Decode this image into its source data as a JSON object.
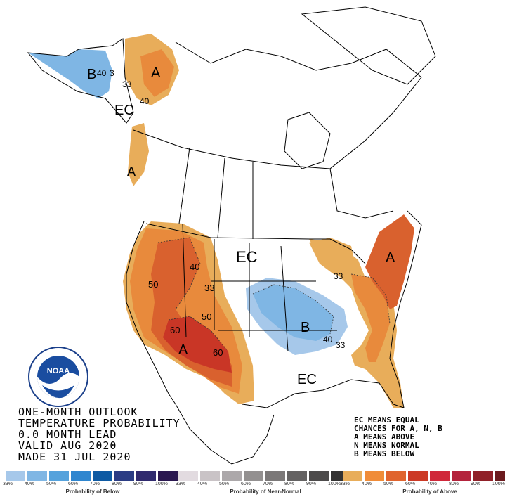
{
  "title_lines": [
    "ONE-MONTH OUTLOOK",
    "TEMPERATURE PROBABILITY",
    "0.0 MONTH LEAD",
    "VALID AUG 2020",
    "MADE 31 JUL 2020"
  ],
  "legend_notes": [
    "EC MEANS EQUAL",
    "CHANCES FOR A, N, B",
    "A MEANS ABOVE",
    "N MEANS NORMAL",
    "B MEANS BELOW"
  ],
  "logo": {
    "text": "NOAA",
    "ring_text": "NATIONAL OCEANIC AND ATMOSPHERIC ADMINISTRATION",
    "bottom_text": "U.S. DEPARTMENT OF COMMERCE"
  },
  "map_labels": {
    "alaska_below": "B",
    "alaska_40": "40",
    "alaska_33": "3",
    "yukon_above": "A",
    "yukon_33": "33",
    "yukon_40": "40",
    "alaska_ec": "EC",
    "bc_above": "A",
    "plains_ec": "EC",
    "west_40": "40",
    "west_50": "50",
    "west_33": "33",
    "sw_50": "50",
    "sw_60": "60",
    "sw_above": "A",
    "sw_60b": "60",
    "midwest_below": "B",
    "midwest_40": "40",
    "midwest_33": "33",
    "lakes_33": "33",
    "east_above": "A",
    "south_ec": "EC"
  },
  "scales": [
    {
      "label": "Probability of Below",
      "colors": [
        "#a6c8ea",
        "#7fb6e4",
        "#55a2dc",
        "#2f86cf",
        "#0d5aa3",
        "#2b3c84",
        "#302a6e",
        "#2a1750"
      ],
      "ticks": [
        "33%",
        "40%",
        "50%",
        "60%",
        "70%",
        "80%",
        "90%",
        "100%"
      ]
    },
    {
      "label": "Probability of Near-Normal",
      "colors": [
        "#e2dbe0",
        "#c9c3c6",
        "#aca8aa",
        "#939090",
        "#7b7878",
        "#646262",
        "#4d4b4b",
        "#333232"
      ],
      "ticks": [
        "33%",
        "40%",
        "50%",
        "60%",
        "70%",
        "80%",
        "90%",
        "100%"
      ]
    },
    {
      "label": "Probability of Above",
      "colors": [
        "#e8ad5a",
        "#f08c38",
        "#e0642e",
        "#cc3a26",
        "#d0283a",
        "#b4233c",
        "#902028",
        "#6c1a1e"
      ],
      "ticks": [
        "33%",
        "40%",
        "50%",
        "60%",
        "70%",
        "80%",
        "90%",
        "100%"
      ]
    }
  ],
  "colors": {
    "above_33": "#e8ad5a",
    "above_40": "#e88a3c",
    "above_50": "#d9612e",
    "above_60": "#c93626",
    "below_33": "#a6c8ea",
    "below_40": "#7fb6e4"
  }
}
